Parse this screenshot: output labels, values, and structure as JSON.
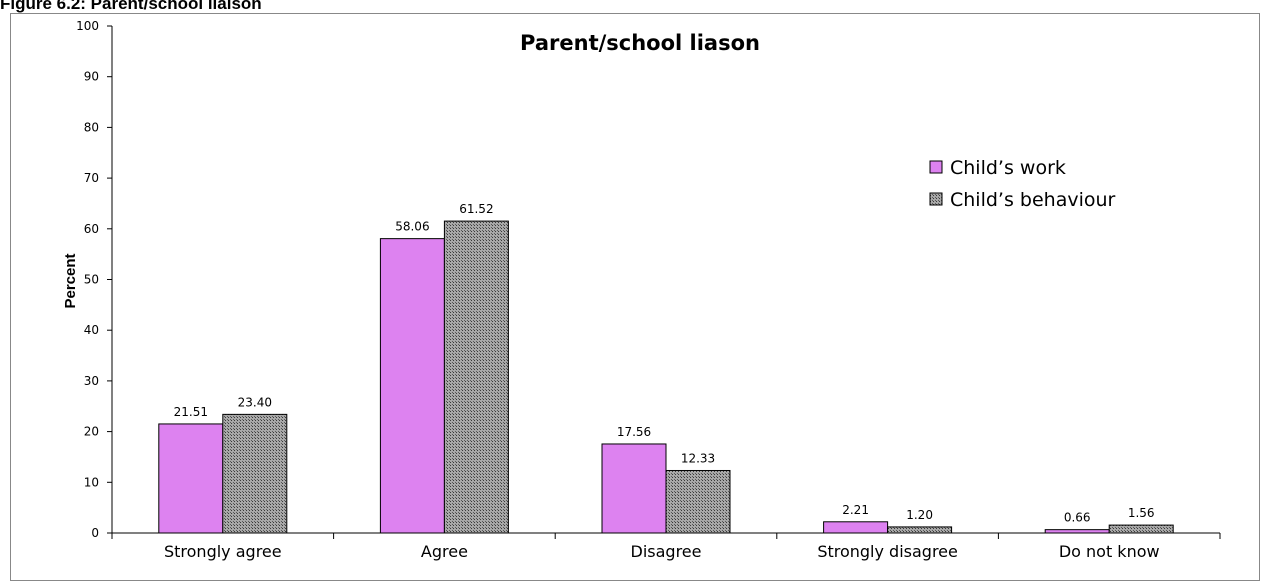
{
  "figure_caption": "Figure 6.2: Parent/school liaison",
  "chart_data": {
    "type": "bar",
    "title": "Parent/school liason",
    "ylabel": "Percent",
    "xlabel": "",
    "ylim": [
      0,
      100
    ],
    "yticks": [
      0,
      10,
      20,
      30,
      40,
      50,
      60,
      70,
      80,
      90,
      100
    ],
    "grid": false,
    "legend_position": "right",
    "categories": [
      "Strongly agree",
      "Agree",
      "Disagree",
      "Strongly disagree",
      "Do not know"
    ],
    "series": [
      {
        "name": "Child’s work",
        "values": [
          21.51,
          58.06,
          17.56,
          2.21,
          0.66
        ],
        "labels": [
          "21.51",
          "58.06",
          "17.56",
          "2.21",
          "0.66"
        ],
        "color": "#dd82f0"
      },
      {
        "name": "Child’s behaviour",
        "values": [
          23.4,
          61.52,
          12.33,
          1.2,
          1.56
        ],
        "labels": [
          "23.40",
          "61.52",
          "12.33",
          "1.20",
          "1.56"
        ],
        "color": "#8c8c8c"
      }
    ]
  }
}
